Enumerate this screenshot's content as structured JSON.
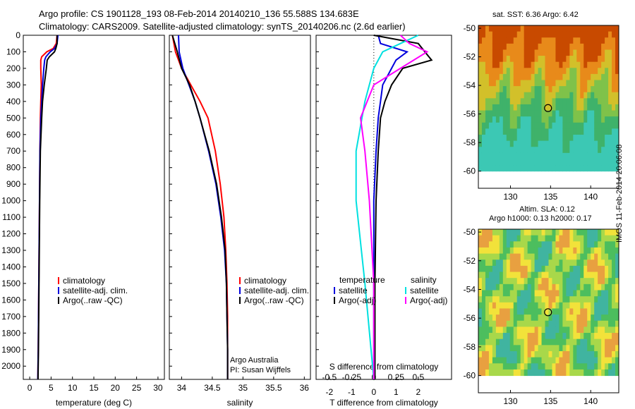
{
  "header": {
    "line1": "Argo profile: CS 1901128_193 08-Feb-2014 20140210_136 55.588S 134.683E",
    "line2": "Climatology: CARS2009. Satellite-adjusted climatology: synTS_20140206.nc (2.6d earlier)"
  },
  "colors": {
    "climatology": "#ff0000",
    "satellite": "#0000dd",
    "argo": "#000000",
    "sat_salinity": "#00e0e0",
    "argo_salinity": "#ff00ff"
  },
  "panel_labels": {
    "ptemp": {
      "xlabel": "temperature (deg C)",
      "legend": [
        "climatology",
        "satellite-adj. clim.",
        "Argo(..raw -QC)"
      ]
    },
    "psal": {
      "xlabel": "salinity",
      "legend": [
        "climatology",
        "satellite-adj. clim.",
        "Argo(..raw -QC)"
      ],
      "credit1": "Argo Australia",
      "credit2": "PI: Susan Wijffels"
    },
    "pdiff": {
      "xlabel_top": "S difference from climatology",
      "xlabel_bottom": "T difference from climatology",
      "legend_t_title": "temperature",
      "legend_s_title": "salinity",
      "legend_t": [
        "satellite",
        "Argo(-adj)"
      ],
      "legend_s": [
        "satellite",
        "Argo(-adj)"
      ]
    }
  },
  "maps": {
    "sst_title": "sat. SST: 6.36 Argo: 6.42",
    "sla_title1": "Altim. SLA: 0.12",
    "sla_title2": "Argo h1000: 0.13 h2000: 0.17",
    "profile_marker": {
      "lon": 134.683,
      "lat": -55.588
    },
    "x_ticks": [
      130,
      135,
      140
    ],
    "y_ticks": [
      -50,
      -52,
      -54,
      -56,
      -58,
      -60
    ]
  },
  "side_label": "IMOS 11-Feb-2014 20:06:08",
  "chart_data": [
    {
      "type": "line",
      "title": "",
      "xlabel": "temperature (deg C)",
      "ylabel": "",
      "xlim": [
        -1.5,
        31.5
      ],
      "ylim": [
        2080,
        0
      ],
      "x_ticks": [
        0,
        5,
        10,
        15,
        20,
        25,
        30
      ],
      "y_ticks": [
        0,
        100,
        200,
        300,
        400,
        500,
        600,
        700,
        800,
        900,
        1000,
        1100,
        1200,
        1300,
        1400,
        1500,
        1600,
        1700,
        1800,
        1900,
        2000
      ],
      "series": [
        {
          "name": "climatology",
          "color": "#ff0000",
          "depth": [
            0,
            50,
            80,
            100,
            130,
            150,
            200,
            300,
            400,
            500,
            700,
            1000,
            1300,
            1600,
            1900,
            2080
          ],
          "values": [
            6.4,
            6.2,
            5.5,
            4.0,
            2.8,
            2.6,
            2.6,
            2.7,
            2.6,
            2.5,
            2.4,
            2.3,
            2.2,
            2.1,
            2.0,
            1.9
          ]
        },
        {
          "name": "satellite-adj. clim.",
          "color": "#0000dd",
          "depth": [
            0,
            50,
            80,
            100,
            130,
            150,
            200,
            300,
            400,
            500,
            700,
            1000,
            1300,
            1600,
            1900,
            2080
          ],
          "values": [
            6.6,
            6.4,
            5.8,
            4.8,
            3.8,
            3.5,
            3.3,
            3.0,
            2.8,
            2.6,
            2.4,
            2.3,
            2.2,
            2.1,
            2.0,
            1.9
          ]
        },
        {
          "name": "Argo(..raw -QC)",
          "color": "#000000",
          "depth": [
            0,
            50,
            80,
            100,
            130,
            150,
            200,
            300,
            400,
            500,
            700,
            1000,
            1300,
            1600,
            1900,
            2080
          ],
          "values": [
            6.4,
            6.4,
            6.1,
            5.8,
            4.6,
            4.1,
            3.9,
            3.4,
            3.0,
            2.8,
            2.5,
            2.35,
            2.25,
            2.15,
            2.05,
            1.95
          ]
        }
      ]
    },
    {
      "type": "line",
      "title": "",
      "xlabel": "salinity",
      "ylabel": "",
      "xlim": [
        33.8,
        36.1
      ],
      "ylim": [
        2080,
        0
      ],
      "x_ticks": [
        34,
        34.5,
        35,
        35.5,
        36
      ],
      "series": [
        {
          "name": "climatology",
          "color": "#ff0000",
          "depth": [
            0,
            100,
            200,
            300,
            400,
            500,
            700,
            900,
            1100,
            1300,
            1500,
            1700,
            1900,
            2080
          ],
          "values": [
            33.85,
            33.9,
            34.0,
            34.15,
            34.3,
            34.43,
            34.55,
            34.63,
            34.69,
            34.72,
            34.74,
            34.75,
            34.75,
            34.75
          ]
        },
        {
          "name": "satellite-adj. clim.",
          "color": "#0000dd",
          "depth": [
            0,
            100,
            200,
            300,
            400,
            500,
            700,
            900,
            1100,
            1300,
            1500,
            1700,
            1900,
            2080
          ],
          "values": [
            33.95,
            33.96,
            34.02,
            34.12,
            34.22,
            34.3,
            34.44,
            34.56,
            34.64,
            34.7,
            34.73,
            34.74,
            34.75,
            34.75
          ]
        },
        {
          "name": "Argo(..raw -QC)",
          "color": "#000000",
          "depth": [
            0,
            100,
            200,
            300,
            400,
            500,
            700,
            900,
            1100,
            1300,
            1500,
            1700,
            1900,
            2080
          ],
          "values": [
            33.85,
            33.93,
            34.0,
            34.13,
            34.22,
            34.3,
            34.45,
            34.57,
            34.65,
            34.71,
            34.73,
            34.74,
            34.75,
            34.75
          ]
        }
      ]
    },
    {
      "type": "line",
      "title": "",
      "xlabel": "T difference from climatology",
      "x2label": "S difference from climatology",
      "ylabel": "",
      "xlim": [
        -2.6,
        3.5
      ],
      "ylim": [
        2080,
        0
      ],
      "x_ticks": [
        -2,
        -1,
        0,
        1,
        2
      ],
      "x2_ticks": [
        -0.5,
        -0.25,
        0,
        0.25,
        0.5
      ],
      "x2_tick_labels": [
        "-0.5",
        "-0.25",
        "0",
        "0.25",
        "0.5"
      ],
      "series": [
        {
          "name": "temperature satellite",
          "color": "#0000dd",
          "depth": [
            0,
            50,
            100,
            150,
            200,
            300,
            400,
            500,
            700,
            1000,
            1500,
            2080
          ],
          "values": [
            0.2,
            0.3,
            1.5,
            1.0,
            0.8,
            0.4,
            0.3,
            0.2,
            0.1,
            0.0,
            0.0,
            0.0
          ]
        },
        {
          "name": "temperature Argo(-adj)",
          "color": "#000000",
          "depth": [
            0,
            50,
            100,
            150,
            200,
            300,
            400,
            500,
            700,
            1000,
            1500,
            2080
          ],
          "values": [
            0.0,
            2.0,
            2.3,
            2.6,
            1.3,
            0.8,
            0.5,
            0.3,
            0.2,
            0.1,
            0.05,
            0.05
          ]
        },
        {
          "name": "salinity satellite",
          "color": "#00e0e0",
          "depth": [
            0,
            50,
            100,
            200,
            400,
            700,
            1000,
            1500,
            2080
          ],
          "values": [
            0.5,
            0.3,
            0.1,
            0.0,
            -0.1,
            -0.2,
            -0.2,
            -0.1,
            0.0
          ]
        },
        {
          "name": "salinity Argo(-adj)",
          "color": "#ff00ff",
          "depth": [
            0,
            50,
            100,
            200,
            300,
            500,
            700,
            1000,
            1500,
            2080
          ],
          "values": [
            0.3,
            0.4,
            0.6,
            0.3,
            0.0,
            -0.15,
            -0.1,
            -0.05,
            0.0,
            0.0
          ]
        }
      ]
    }
  ]
}
